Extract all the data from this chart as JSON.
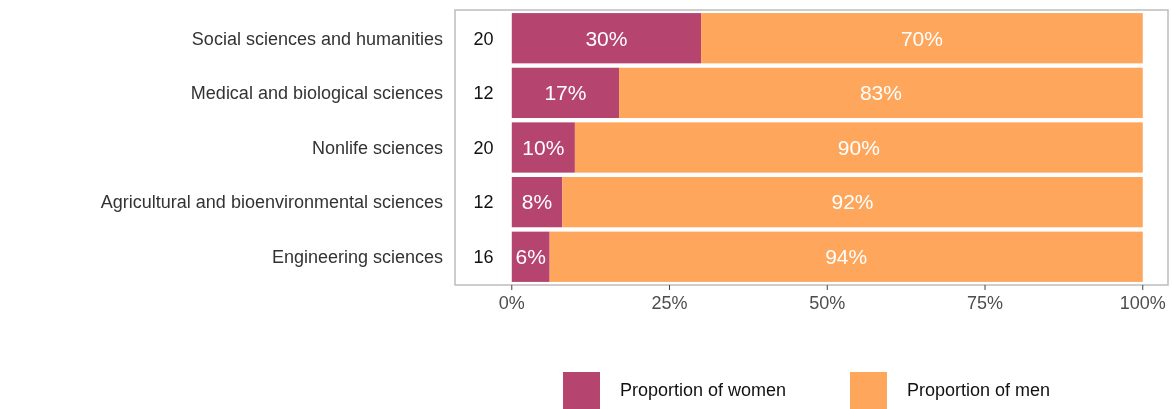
{
  "chart_data": {
    "type": "bar",
    "orientation": "horizontal",
    "stacked": true,
    "categories": [
      "Social sciences and humanities",
      "Medical and biological sciences",
      "Nonlife sciences",
      "Agricultural and bioenvironmental sciences",
      "Engineering sciences"
    ],
    "series": [
      {
        "name": "Proportion of women",
        "color": "#b5446e",
        "values": [
          30,
          17,
          10,
          8,
          6
        ],
        "value_labels": [
          "30%",
          "17%",
          "10%",
          "8%",
          "6%"
        ]
      },
      {
        "name": "Proportion of men",
        "color": "#fda65c",
        "values": [
          70,
          83,
          90,
          92,
          94
        ],
        "value_labels": [
          "70%",
          "83%",
          "90%",
          "92%",
          "94%"
        ]
      }
    ],
    "xlim": [
      -9,
      104
    ],
    "xticks": [
      {
        "value": 0,
        "label": "0%"
      },
      {
        "value": 25,
        "label": "25%"
      },
      {
        "value": 50,
        "label": "50%"
      },
      {
        "value": 75,
        "label": "75%"
      },
      {
        "value": 100,
        "label": "100%"
      }
    ],
    "annotations": [
      "20",
      "12",
      "20",
      "12",
      "16"
    ],
    "grid": false,
    "legend": "bottom"
  }
}
